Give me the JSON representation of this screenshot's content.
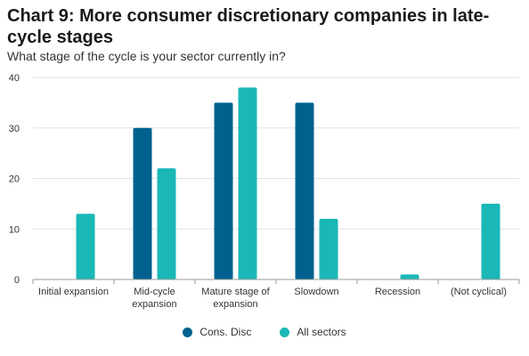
{
  "chart_data": {
    "type": "bar",
    "title": "Chart 9: More consumer discretionary companies in late-cycle stages",
    "subtitle": "What stage of the cycle is your sector currently in?",
    "categories": [
      [
        "Initial expansion"
      ],
      [
        "Mid-cycle",
        "expansion"
      ],
      [
        "Mature stage of",
        "expansion"
      ],
      [
        "Slowdown"
      ],
      [
        "Recession"
      ],
      [
        "(Not cyclical)"
      ]
    ],
    "series": [
      {
        "name": "Cons. Disc",
        "color": "#00618f",
        "values": [
          0,
          30,
          35,
          35,
          0,
          0
        ]
      },
      {
        "name": "All sectors",
        "color": "#19b8b7",
        "values": [
          13,
          22,
          38,
          12,
          1,
          15
        ]
      }
    ],
    "ylim": [
      0,
      40
    ],
    "yticks": [
      0,
      10,
      20,
      30,
      40
    ],
    "grid": true,
    "legend_position": "bottom"
  }
}
